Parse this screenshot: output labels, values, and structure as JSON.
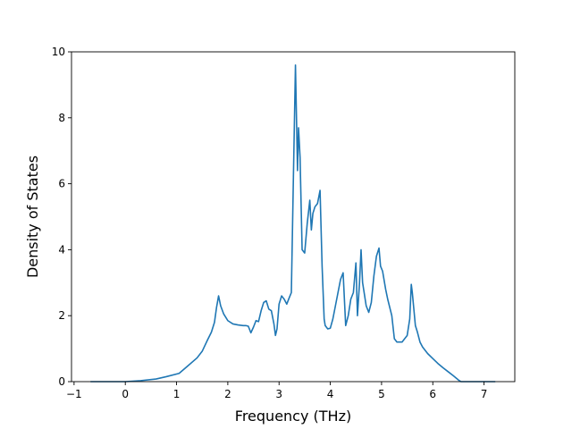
{
  "chart_data": {
    "type": "line",
    "title": "",
    "xlabel": "Frequency (THz)",
    "ylabel": "Density of States",
    "xlim": [
      -1.05,
      7.6
    ],
    "ylim": [
      0,
      10
    ],
    "x_ticks": [
      -1,
      0,
      1,
      2,
      3,
      4,
      5,
      6,
      7
    ],
    "y_ticks": [
      0,
      2,
      4,
      6,
      8,
      10
    ],
    "grid": false,
    "legend": "none",
    "series": [
      {
        "color": "#1f77b4",
        "x": [
          -0.68,
          -0.3,
          0.0,
          0.3,
          0.6,
          0.8,
          1.05,
          1.2,
          1.4,
          1.5,
          1.6,
          1.68,
          1.74,
          1.78,
          1.82,
          1.86,
          1.92,
          2.0,
          2.1,
          2.2,
          2.3,
          2.35,
          2.4,
          2.45,
          2.5,
          2.55,
          2.6,
          2.65,
          2.7,
          2.75,
          2.8,
          2.85,
          2.9,
          2.93,
          2.96,
          3.0,
          3.05,
          3.1,
          3.15,
          3.2,
          3.24,
          3.28,
          3.32,
          3.36,
          3.38,
          3.41,
          3.45,
          3.5,
          3.55,
          3.6,
          3.63,
          3.66,
          3.7,
          3.75,
          3.8,
          3.84,
          3.88,
          3.9,
          3.95,
          4.0,
          4.05,
          4.1,
          4.15,
          4.2,
          4.25,
          4.3,
          4.35,
          4.4,
          4.45,
          4.5,
          4.53,
          4.57,
          4.6,
          4.63,
          4.67,
          4.7,
          4.75,
          4.8,
          4.85,
          4.9,
          4.95,
          4.98,
          5.02,
          5.08,
          5.12,
          5.2,
          5.25,
          5.3,
          5.4,
          5.5,
          5.55,
          5.58,
          5.6,
          5.63,
          5.66,
          5.7,
          5.75,
          5.8,
          5.9,
          6.0,
          6.1,
          6.2,
          6.3,
          6.4,
          6.5,
          6.55,
          6.6,
          6.7,
          7.0,
          7.22
        ],
        "y": [
          0.0,
          0.0,
          0.0,
          0.03,
          0.08,
          0.15,
          0.25,
          0.45,
          0.72,
          0.92,
          1.25,
          1.5,
          1.8,
          2.25,
          2.6,
          2.3,
          2.05,
          1.85,
          1.75,
          1.72,
          1.7,
          1.7,
          1.68,
          1.48,
          1.65,
          1.85,
          1.82,
          2.15,
          2.4,
          2.45,
          2.2,
          2.15,
          1.75,
          1.4,
          1.6,
          2.35,
          2.6,
          2.5,
          2.35,
          2.55,
          2.7,
          6.2,
          9.6,
          6.4,
          7.7,
          6.8,
          4.0,
          3.9,
          4.8,
          5.5,
          4.6,
          5.1,
          5.3,
          5.4,
          5.8,
          3.5,
          1.9,
          1.7,
          1.6,
          1.62,
          1.9,
          2.3,
          2.7,
          3.1,
          3.3,
          1.7,
          2.0,
          2.5,
          2.7,
          3.6,
          2.0,
          3.0,
          4.0,
          3.0,
          2.6,
          2.3,
          2.1,
          2.4,
          3.2,
          3.8,
          4.05,
          3.5,
          3.35,
          2.8,
          2.5,
          2.0,
          1.3,
          1.2,
          1.2,
          1.4,
          1.9,
          2.95,
          2.7,
          2.2,
          1.7,
          1.5,
          1.2,
          1.05,
          0.85,
          0.7,
          0.55,
          0.42,
          0.3,
          0.18,
          0.05,
          0.0,
          0.0,
          0.0,
          0.0,
          0.0
        ]
      }
    ]
  }
}
